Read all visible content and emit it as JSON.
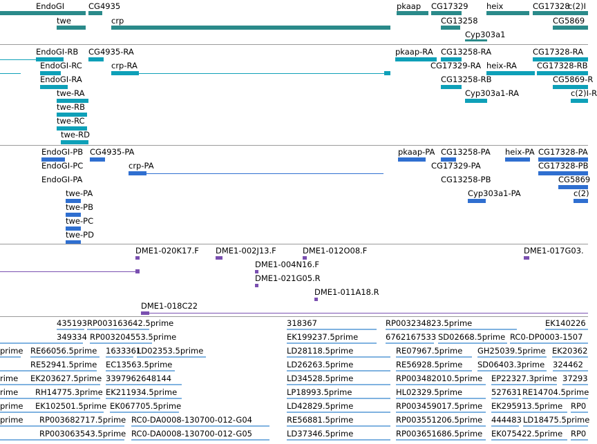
{
  "tracks": [
    {
      "name": "gene-track",
      "color": "#2a8a8a",
      "features": [
        {
          "label": "EndoGI"
        },
        {
          "label": "CG4935"
        },
        {
          "label": "twe"
        },
        {
          "label": "crp"
        },
        {
          "label": "pkaap"
        },
        {
          "label": "CG17329"
        },
        {
          "label": "heix"
        },
        {
          "label": "CG17328"
        },
        {
          "label": "c(2)I"
        },
        {
          "label": "CG13258"
        },
        {
          "label": "CG5869"
        },
        {
          "label": "Cyp303a1"
        }
      ]
    },
    {
      "name": "transcript-track",
      "color": "#0ea0b8",
      "features": [
        {
          "label": "EndoGI-RB"
        },
        {
          "label": "CG4935-RA"
        },
        {
          "label": "EndoGI-RC"
        },
        {
          "label": "crp-RA"
        },
        {
          "label": "EndoGI-RA"
        },
        {
          "label": "twe-RA"
        },
        {
          "label": "twe-RB"
        },
        {
          "label": "twe-RC"
        },
        {
          "label": "twe-RD"
        },
        {
          "label": "pkaap-RA"
        },
        {
          "label": "CG13258-RA"
        },
        {
          "label": "CG17328-RA"
        },
        {
          "label": "CG17329-RA"
        },
        {
          "label": "heix-RA"
        },
        {
          "label": "CG17328-RB"
        },
        {
          "label": "CG13258-RB"
        },
        {
          "label": "CG5869-R"
        },
        {
          "label": "Cyp303a1-RA"
        },
        {
          "label": "c(2)I-R"
        }
      ]
    },
    {
      "name": "protein-track",
      "color": "#2f6fd0",
      "features": [
        {
          "label": "EndoGI-PB"
        },
        {
          "label": "CG4935-PA"
        },
        {
          "label": "EndoGI-PC"
        },
        {
          "label": "crp-PA"
        },
        {
          "label": "EndoGI-PA"
        },
        {
          "label": "twe-PA"
        },
        {
          "label": "twe-PB"
        },
        {
          "label": "twe-PC"
        },
        {
          "label": "twe-PD"
        },
        {
          "label": "pkaap-PA"
        },
        {
          "label": "CG13258-PA"
        },
        {
          "label": "heix-PA"
        },
        {
          "label": "CG17328-PA"
        },
        {
          "label": "CG17329-PA"
        },
        {
          "label": "CG17328-PB"
        },
        {
          "label": "CG13258-PB"
        },
        {
          "label": "CG5869"
        },
        {
          "label": "Cyp303a1-PA"
        },
        {
          "label": "c(2)"
        }
      ]
    },
    {
      "name": "bac-track",
      "color": "#7a4fb0",
      "features": [
        {
          "label": "DME1-020K17.F"
        },
        {
          "label": "DME1-002J13.F"
        },
        {
          "label": "DME1-012O08.F"
        },
        {
          "label": "DME1-017G03."
        },
        {
          "label": "DME1-004N16.F"
        },
        {
          "label": "DME1-021G05.R"
        },
        {
          "label": "DME1-011A18.R"
        },
        {
          "label": "DME1-018C22"
        }
      ]
    },
    {
      "name": "est-track",
      "color": "#7fb2e0",
      "features": [
        {
          "label": "435193"
        },
        {
          "label": "RP003163642.5prime"
        },
        {
          "label": "318367"
        },
        {
          "label": "RP003234823.5prime"
        },
        {
          "label": "EK140226"
        },
        {
          "label": "349334"
        },
        {
          "label": "RP003204553.5prime"
        },
        {
          "label": "EK199237.5prime"
        },
        {
          "label": "6762167533"
        },
        {
          "label": "SD02668.5prime"
        },
        {
          "label": "RC0-DP0003-1507"
        },
        {
          "label": "prime"
        },
        {
          "label": "RE66056.5prime"
        },
        {
          "label": "1633361"
        },
        {
          "label": "LD02353.5prime"
        },
        {
          "label": "LD28118.5prime"
        },
        {
          "label": "RE07967.5prime"
        },
        {
          "label": "GH25039.5prime"
        },
        {
          "label": "EK20362"
        },
        {
          "label": "RE52941.5prime"
        },
        {
          "label": "EC13563.5prime"
        },
        {
          "label": "LD26263.5prime"
        },
        {
          "label": "RE56928.5prime"
        },
        {
          "label": "SD06403.3prime"
        },
        {
          "label": "324462"
        },
        {
          "label": "rime"
        },
        {
          "label": "EK203627.5prime"
        },
        {
          "label": "3397962648144"
        },
        {
          "label": "LD34528.5prime"
        },
        {
          "label": "RP003482010.5prime"
        },
        {
          "label": "EP22327.3prime"
        },
        {
          "label": "37293"
        },
        {
          "label": "rime"
        },
        {
          "label": "RH14775.3prime"
        },
        {
          "label": "EK211934.5prime"
        },
        {
          "label": "LP18993.5prime"
        },
        {
          "label": "HL02329.5prime"
        },
        {
          "label": "527631"
        },
        {
          "label": "RE14704.5prime"
        },
        {
          "label": "prime"
        },
        {
          "label": "EK102501.5prime"
        },
        {
          "label": "EK067705.5prime"
        },
        {
          "label": "LD42829.5prime"
        },
        {
          "label": "RP003459017.5prime"
        },
        {
          "label": "EK295913.5prime"
        },
        {
          "label": "RP0"
        },
        {
          "label": "prime"
        },
        {
          "label": "RP003682717.5prime"
        },
        {
          "label": "RC0-DA0008-130700-012-G04"
        },
        {
          "label": "RE56881.5prime"
        },
        {
          "label": "RP003551206.5prime"
        },
        {
          "label": "444483"
        },
        {
          "label": "LD18475.5prime"
        },
        {
          "label": "RP003063543.5prime"
        },
        {
          "label": "RC0-DA0008-130700-012-G05"
        },
        {
          "label": "LD37346.5prime"
        },
        {
          "label": "RP003651686.5prime"
        },
        {
          "label": "EK075422.5prime"
        },
        {
          "label": "RP0"
        }
      ]
    }
  ]
}
